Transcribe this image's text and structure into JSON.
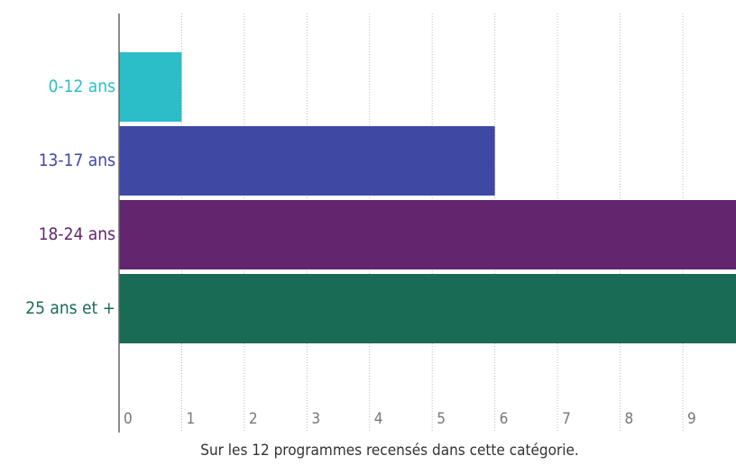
{
  "chart_data": {
    "type": "barh",
    "categories": [
      "0-12 ans",
      "13-17 ans",
      "18-24 ans",
      "25 ans et +"
    ],
    "values": [
      1,
      6,
      10,
      10
    ],
    "colors": [
      "#2bbdc8",
      "#3f48a3",
      "#62256e",
      "#1a6b55"
    ],
    "xlim": [
      0,
      9.85
    ],
    "xticks": [
      0,
      1,
      2,
      3,
      4,
      5,
      6,
      7,
      8,
      9
    ],
    "grid": true,
    "xlabel": "Sur les 12 programmes recensés dans cette catégorie."
  }
}
